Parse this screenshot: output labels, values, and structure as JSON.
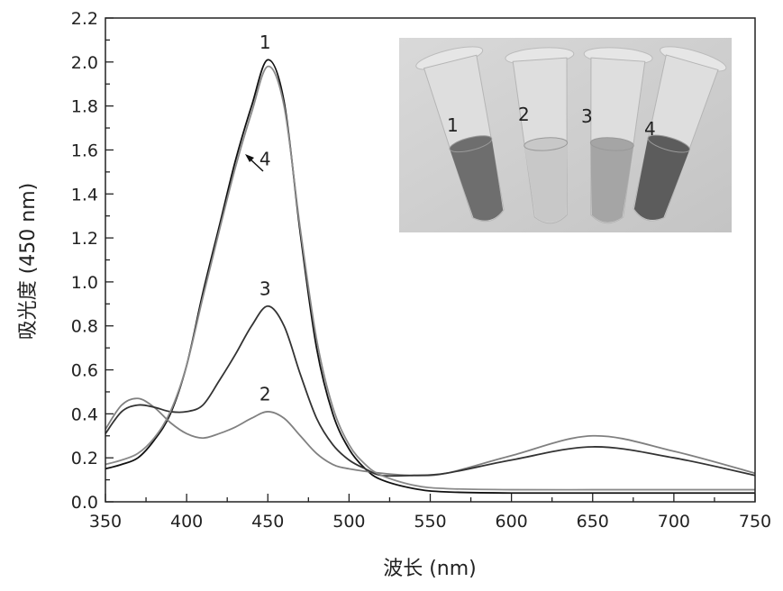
{
  "chart_data": {
    "type": "line",
    "title": "",
    "xlabel": "波长 (nm)",
    "ylabel": "吸光度 (450 nm)",
    "xlim": [
      350,
      750
    ],
    "ylim": [
      0.0,
      2.2
    ],
    "xticks": [
      "350",
      "400",
      "450",
      "500",
      "550",
      "600",
      "650",
      "700",
      "750"
    ],
    "yticks": [
      "0.0",
      "0.2",
      "0.4",
      "0.6",
      "0.8",
      "1.0",
      "1.2",
      "1.4",
      "1.6",
      "1.8",
      "2.0",
      "2.2"
    ],
    "grid": false,
    "series": [
      {
        "name": "1",
        "color": "#111111",
        "x": [
          350,
          360,
          370,
          380,
          390,
          400,
          410,
          420,
          430,
          440,
          450,
          460,
          470,
          480,
          490,
          500,
          510,
          520,
          540,
          560,
          600,
          650,
          700,
          750
        ],
        "y": [
          0.15,
          0.17,
          0.2,
          0.28,
          0.4,
          0.62,
          0.95,
          1.25,
          1.55,
          1.8,
          2.01,
          1.82,
          1.22,
          0.7,
          0.4,
          0.24,
          0.15,
          0.1,
          0.06,
          0.045,
          0.04,
          0.04,
          0.04,
          0.04
        ]
      },
      {
        "name": "2",
        "color": "#808080",
        "x": [
          350,
          360,
          370,
          380,
          390,
          400,
          410,
          420,
          430,
          440,
          450,
          460,
          470,
          480,
          490,
          500,
          520,
          540,
          560,
          600,
          650,
          700,
          750
        ],
        "y": [
          0.33,
          0.44,
          0.47,
          0.43,
          0.36,
          0.31,
          0.29,
          0.31,
          0.34,
          0.38,
          0.41,
          0.38,
          0.3,
          0.22,
          0.17,
          0.15,
          0.13,
          0.12,
          0.13,
          0.21,
          0.3,
          0.23,
          0.13
        ]
      },
      {
        "name": "3",
        "color": "#333333",
        "x": [
          350,
          360,
          370,
          380,
          390,
          400,
          410,
          420,
          430,
          440,
          450,
          460,
          470,
          480,
          490,
          500,
          510,
          520,
          540,
          560,
          600,
          650,
          700,
          750
        ],
        "y": [
          0.31,
          0.41,
          0.44,
          0.43,
          0.41,
          0.41,
          0.44,
          0.55,
          0.67,
          0.8,
          0.89,
          0.8,
          0.58,
          0.38,
          0.26,
          0.19,
          0.15,
          0.12,
          0.12,
          0.13,
          0.19,
          0.25,
          0.2,
          0.12
        ]
      },
      {
        "name": "4",
        "color": "#8a8a8a",
        "x": [
          350,
          360,
          370,
          380,
          390,
          400,
          410,
          420,
          430,
          440,
          450,
          460,
          470,
          480,
          490,
          500,
          510,
          520,
          540,
          560,
          600,
          650,
          700,
          750
        ],
        "y": [
          0.17,
          0.19,
          0.22,
          0.29,
          0.41,
          0.62,
          0.93,
          1.23,
          1.52,
          1.77,
          1.98,
          1.8,
          1.24,
          0.74,
          0.43,
          0.26,
          0.17,
          0.12,
          0.075,
          0.06,
          0.055,
          0.055,
          0.055,
          0.055
        ]
      }
    ],
    "annotations": [
      {
        "text": "1",
        "x": 450,
        "y": 2.06
      },
      {
        "text": "4",
        "x": 450,
        "y": 1.53
      },
      {
        "text": "3",
        "x": 450,
        "y": 0.94
      },
      {
        "text": "2",
        "x": 450,
        "y": 0.46
      }
    ],
    "inset_photo": {
      "tube_labels": [
        "1",
        "2",
        "3",
        "4"
      ]
    }
  }
}
